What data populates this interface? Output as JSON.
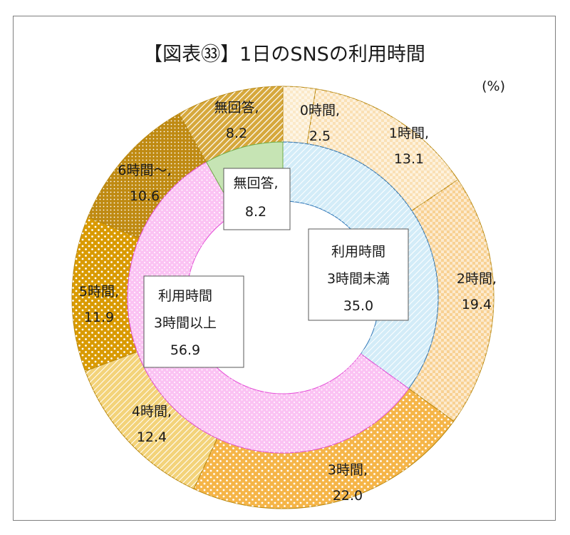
{
  "chart_data": {
    "type": "pie",
    "subtype": "double-donut",
    "title": "【図表㉝】1日のSNSの利用時間",
    "unit_label": "(%)",
    "outer_ring": {
      "slices": [
        {
          "name": "0時間",
          "value": 2.5,
          "label": [
            "0時間,",
            "2.5"
          ],
          "color": "#fbe9c8"
        },
        {
          "name": "1時間",
          "value": 13.1,
          "label": [
            "1時間,",
            "13.1"
          ],
          "color": "#fae0b4"
        },
        {
          "name": "2時間",
          "value": 19.4,
          "label": [
            "2時間,",
            "19.4"
          ],
          "color": "#f8d193"
        },
        {
          "name": "3時間",
          "value": 22.0,
          "label": [
            "3時間,",
            "22.0"
          ],
          "color": "#f5b548"
        },
        {
          "name": "4時間",
          "value": 12.4,
          "label": [
            "4時間,",
            "12.4"
          ],
          "color": "#f3d37a"
        },
        {
          "name": "5時間",
          "value": 11.9,
          "label": [
            "5時間,",
            "11.9"
          ],
          "color": "#d99a00"
        },
        {
          "name": "6時間～",
          "value": 10.6,
          "label": [
            "6時間～,",
            "10.6"
          ],
          "color": "#bf8a12"
        },
        {
          "name": "無回答",
          "value": 8.2,
          "label": [
            "無回答,",
            "8.2"
          ],
          "color": "#d6a83c"
        }
      ]
    },
    "inner_ring": {
      "slices": [
        {
          "name": "利用時間3時間未満",
          "value": 35.0,
          "label": [
            "利用時間",
            "3時間未満",
            "35.0"
          ],
          "color": "#d3ecf8"
        },
        {
          "name": "利用時間3時間以上",
          "value": 56.9,
          "label": [
            "利用時間",
            "3時間以上",
            "56.9"
          ],
          "color": "#fbc2f3"
        },
        {
          "name": "無回答",
          "value": 8.2,
          "label": [
            "無回答,",
            "8.2"
          ],
          "color": "#c6e4b4"
        }
      ]
    },
    "colors": {
      "outer_edge": "#b8860b",
      "inner_edge_blue": "#2e75b6",
      "inner_edge_pink": "#e34fd6",
      "inner_edge_green": "#70ad47"
    }
  }
}
